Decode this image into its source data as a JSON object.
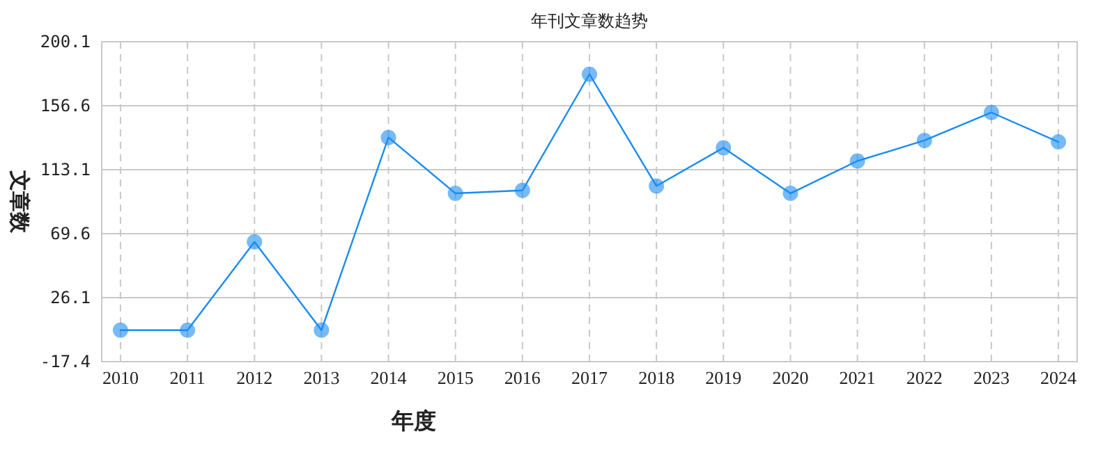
{
  "chart_data": {
    "type": "line",
    "title": "年刊文章数趋势",
    "xlabel": "年度",
    "ylabel": "文章数",
    "categories": [
      "2010",
      "2011",
      "2012",
      "2013",
      "2014",
      "2015",
      "2016",
      "2017",
      "2018",
      "2019",
      "2020",
      "2021",
      "2022",
      "2023",
      "2024"
    ],
    "series": [
      {
        "color": "#1a8cf0",
        "values": [
          4,
          4,
          64,
          4,
          135,
          97,
          99,
          178,
          102,
          128,
          97,
          119,
          133,
          152,
          132
        ]
      }
    ],
    "ylim": [
      -17.4,
      200.1
    ],
    "yticks": [
      -17.4,
      26.1,
      69.6,
      113.1,
      156.6,
      200.1
    ],
    "grid": true,
    "marker": "circle",
    "line_style": "solid"
  }
}
